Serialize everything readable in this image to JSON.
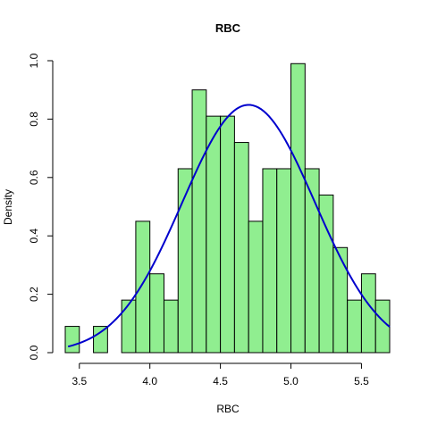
{
  "chart_data": {
    "type": "bar",
    "title": "RBC",
    "xlabel": "RBC",
    "ylabel": "Density",
    "xlim": [
      3.4,
      5.7
    ],
    "ylim": [
      0,
      1.0
    ],
    "x_ticks": [
      3.5,
      4.0,
      4.5,
      5.0,
      5.5
    ],
    "x_tick_labels": [
      "3.5",
      "4.0",
      "4.5",
      "5.0",
      "5.5"
    ],
    "y_ticks": [
      0.0,
      0.2,
      0.4,
      0.6,
      0.8,
      1.0
    ],
    "y_tick_labels": [
      "0.0",
      "0.2",
      "0.4",
      "0.6",
      "0.8",
      "1.0"
    ],
    "grid": false,
    "bar_color": "#90EE90",
    "bar_border_color": "#000000",
    "bins": [
      {
        "start": 3.4,
        "end": 3.5,
        "density": 0.09
      },
      {
        "start": 3.5,
        "end": 3.6,
        "density": 0.0
      },
      {
        "start": 3.6,
        "end": 3.7,
        "density": 0.09
      },
      {
        "start": 3.7,
        "end": 3.8,
        "density": 0.0
      },
      {
        "start": 3.8,
        "end": 3.9,
        "density": 0.18
      },
      {
        "start": 3.9,
        "end": 4.0,
        "density": 0.45
      },
      {
        "start": 4.0,
        "end": 4.1,
        "density": 0.27
      },
      {
        "start": 4.1,
        "end": 4.2,
        "density": 0.18
      },
      {
        "start": 4.2,
        "end": 4.3,
        "density": 0.63
      },
      {
        "start": 4.3,
        "end": 4.4,
        "density": 0.9
      },
      {
        "start": 4.4,
        "end": 4.5,
        "density": 0.81
      },
      {
        "start": 4.5,
        "end": 4.6,
        "density": 0.81
      },
      {
        "start": 4.6,
        "end": 4.7,
        "density": 0.72
      },
      {
        "start": 4.7,
        "end": 4.8,
        "density": 0.45
      },
      {
        "start": 4.8,
        "end": 4.9,
        "density": 0.63
      },
      {
        "start": 4.9,
        "end": 5.0,
        "density": 0.63
      },
      {
        "start": 5.0,
        "end": 5.1,
        "density": 0.99
      },
      {
        "start": 5.1,
        "end": 5.2,
        "density": 0.63
      },
      {
        "start": 5.2,
        "end": 5.3,
        "density": 0.54
      },
      {
        "start": 5.3,
        "end": 5.4,
        "density": 0.36
      },
      {
        "start": 5.4,
        "end": 5.5,
        "density": 0.18
      },
      {
        "start": 5.5,
        "end": 5.6,
        "density": 0.27
      },
      {
        "start": 5.6,
        "end": 5.7,
        "density": 0.18
      }
    ],
    "density_curve": {
      "type": "normal",
      "mean": 4.7,
      "sd": 0.47,
      "color": "#0000CD",
      "x_range": [
        3.42,
        5.7
      ]
    }
  }
}
